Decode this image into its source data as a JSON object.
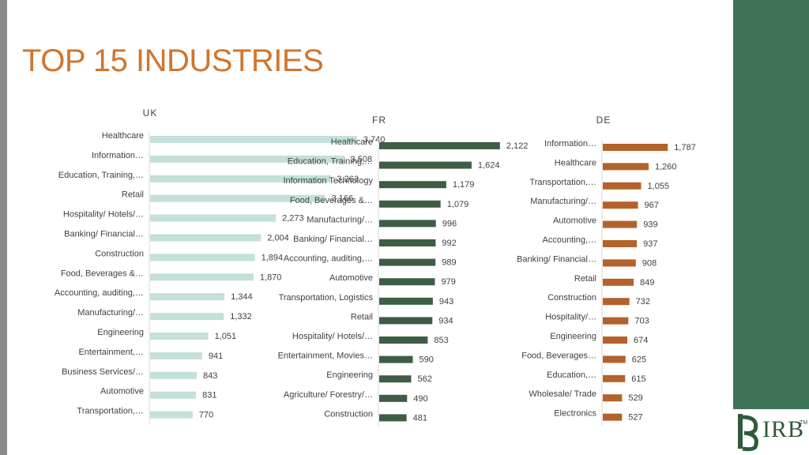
{
  "page": {
    "title": "TOP 15 INDUSTRIES",
    "logo_text": "IRB",
    "logo_mark": "TM"
  },
  "colors": {
    "title": "#d0752f",
    "uk_bar": "#c3e0da",
    "fr_bar": "#3f5d45",
    "de_bar": "#b4622c",
    "panel": "#3e7456"
  },
  "chart_data": [
    {
      "type": "bar",
      "orientation": "horizontal",
      "title": "UK",
      "categories": [
        "Healthcare",
        "Information…",
        "Education, Training,…",
        "Retail",
        "Hospitality/ Hotels/…",
        "Banking/ Financial…",
        "Construction",
        "Food, Beverages &…",
        "Accounting, auditing,…",
        "Manufacturing/…",
        "Engineering",
        "Entertainment,…",
        "Business Services/…",
        "Automotive",
        "Transportation,…"
      ],
      "values": [
        3740,
        3508,
        3263,
        3166,
        2273,
        2004,
        1894,
        1870,
        1344,
        1332,
        1051,
        941,
        843,
        831,
        770
      ],
      "value_labels": [
        "3,740",
        "3,508",
        "3,263",
        "3,166",
        "2,273",
        "2,004",
        "1,894",
        "1,870",
        "1,344",
        "1,332",
        "1,051",
        "941",
        "843",
        "831",
        "770"
      ],
      "grid": false
    },
    {
      "type": "bar",
      "orientation": "horizontal",
      "title": "FR",
      "categories": [
        "Healthcare",
        "Education, Training,…",
        "Information Technology",
        "Food, Beverages &…",
        "Manufacturing/…",
        "Banking/ Financial…",
        "Accounting, auditing,…",
        "Automotive",
        "Transportation, Logistics",
        "Retail",
        "Hospitality/ Hotels/…",
        "Entertainment, Movies…",
        "Engineering",
        "Agriculture/ Forestry/…",
        "Construction"
      ],
      "values": [
        2122,
        1624,
        1179,
        1079,
        996,
        992,
        989,
        979,
        943,
        934,
        853,
        590,
        562,
        490,
        481
      ],
      "value_labels": [
        "2,122",
        "1,624",
        "1,179",
        "1,079",
        "996",
        "992",
        "989",
        "979",
        "943",
        "934",
        "853",
        "590",
        "562",
        "490",
        "481"
      ],
      "grid": false
    },
    {
      "type": "bar",
      "orientation": "horizontal",
      "title": "DE",
      "categories": [
        "Information…",
        "Healthcare",
        "Transportation,…",
        "Manufacturing/…",
        "Automotive",
        "Accounting,…",
        "Banking/ Financial…",
        "Retail",
        "Construction",
        "Hospitality/…",
        "Engineering",
        "Food, Beverages…",
        "Education,…",
        "Wholesale/ Trade",
        "Electronics"
      ],
      "values": [
        1787,
        1260,
        1055,
        967,
        939,
        937,
        908,
        849,
        732,
        703,
        674,
        625,
        615,
        529,
        527
      ],
      "value_labels": [
        "1,787",
        "1,260",
        "1,055",
        "967",
        "939",
        "937",
        "908",
        "849",
        "732",
        "703",
        "674",
        "625",
        "615",
        "529",
        "527"
      ],
      "grid": false
    }
  ]
}
